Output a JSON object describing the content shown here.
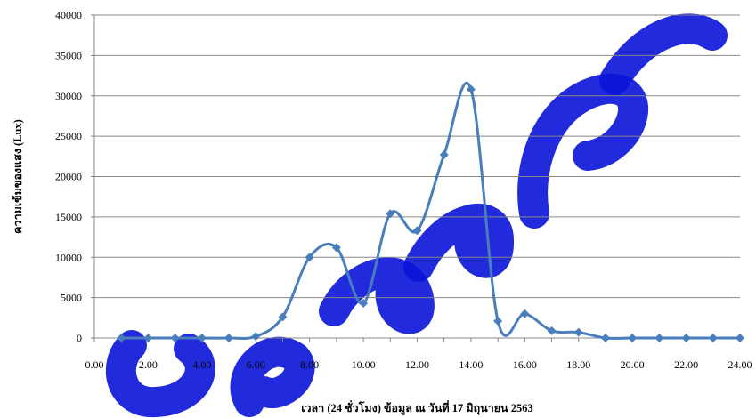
{
  "chart_data": {
    "type": "line",
    "xlabel": "เวลา (24 ชั่วโมง) ข้อมูล ณ วันที่ 17 มิถุนายน 2563",
    "ylabel": "ความเข้มของแสง (Lux)",
    "xlim": [
      0,
      24
    ],
    "ylim": [
      0,
      40000
    ],
    "x_ticks": [
      "0.00",
      "2.00",
      "4.00",
      "6.00",
      "8.00",
      "10.00",
      "12.00",
      "14.00",
      "16.00",
      "18.00",
      "20.00",
      "22.00",
      "24.00"
    ],
    "y_ticks": [
      "0",
      "5000",
      "10000",
      "15000",
      "20000",
      "25000",
      "30000",
      "35000",
      "40000"
    ],
    "grid": "horizontal",
    "legend": "none",
    "smooth": true,
    "colors": {
      "line": "#4a7ebb",
      "marker": "#4a7ebb",
      "grid": "#878787",
      "watermark": "#0a14d8"
    },
    "series": [
      {
        "x": [
          1,
          2,
          3,
          4,
          5,
          6,
          7,
          8,
          9,
          10,
          11,
          12,
          13,
          14,
          15,
          16,
          17,
          18,
          19,
          20,
          21,
          22,
          23,
          24
        ],
        "values": [
          0,
          0,
          0,
          0,
          0,
          200,
          2600,
          10000,
          11200,
          4300,
          15400,
          13300,
          22700,
          30800,
          2100,
          3000,
          900,
          700,
          0,
          0,
          0,
          0,
          0,
          0
        ]
      }
    ]
  }
}
